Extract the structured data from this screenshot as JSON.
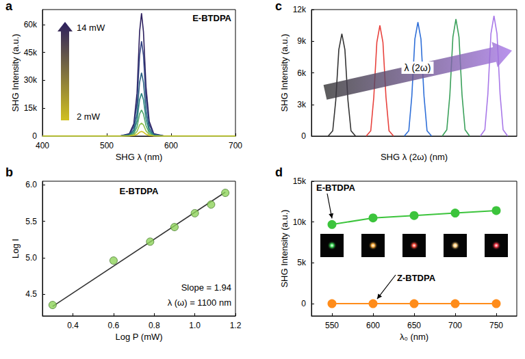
{
  "chart_data": [
    {
      "panel": "a",
      "type": "line",
      "x_label": "SHG λ (nm)",
      "y_label": "SHG Intensity (a.u.)",
      "annotations": [
        "E-BTDPA",
        "14 mW",
        "2 mW"
      ],
      "x": [
        400,
        520,
        535,
        542,
        547,
        551,
        554,
        557,
        561,
        566,
        573,
        590,
        700
      ],
      "series": [
        {
          "color": "#2b1e5e",
          "values": [
            0,
            0,
            1300,
            6600,
            23100,
            56100,
            66000,
            56100,
            26400,
            7900,
            1300,
            0,
            0
          ]
        },
        {
          "color": "#2f3f80",
          "values": [
            0,
            0,
            1000,
            5100,
            17900,
            43400,
            51000,
            43400,
            20400,
            6100,
            1000,
            0,
            0
          ]
        },
        {
          "color": "#2b6383",
          "values": [
            0,
            0,
            700,
            3400,
            11900,
            28900,
            34000,
            28900,
            13600,
            4100,
            700,
            0,
            0
          ]
        },
        {
          "color": "#2a857e",
          "values": [
            0,
            0,
            500,
            2300,
            8100,
            19600,
            23000,
            19600,
            9200,
            2800,
            500,
            0,
            0
          ]
        },
        {
          "color": "#4ea66a",
          "values": [
            0,
            0,
            300,
            1400,
            4900,
            11900,
            14000,
            11900,
            5600,
            1700,
            300,
            0,
            0
          ]
        },
        {
          "color": "#8ec04a",
          "values": [
            0,
            0,
            100,
            700,
            2500,
            6000,
            7000,
            6000,
            2800,
            800,
            100,
            0,
            0
          ]
        },
        {
          "color": "#d0c020",
          "values": [
            0,
            0,
            100,
            300,
            900,
            2100,
            2500,
            2100,
            1000,
            300,
            100,
            0,
            0
          ]
        }
      ],
      "xlim": [
        400,
        700
      ],
      "xticks": [
        400,
        500,
        600,
        700
      ],
      "ylim": [
        0,
        68000
      ],
      "yticks": [
        0,
        {
          "value": 15000,
          "label": "15k"
        },
        {
          "value": 30000,
          "label": "30k"
        },
        {
          "value": 45000,
          "label": "45k"
        },
        {
          "value": 60000,
          "label": "60k"
        }
      ],
      "grid": false
    },
    {
      "panel": "b",
      "type": "scatter",
      "x_label": "Log P (mW)",
      "y_label": "Log I",
      "annotations": [
        "E-BTDPA",
        "Slope = 1.94",
        "λ (ω) = 1100 nm"
      ],
      "series": [
        {
          "type": "line",
          "color": "#333333",
          "x": [
            0.3,
            1.15
          ],
          "values": [
            4.33,
            5.9
          ]
        },
        {
          "type": "scatter",
          "marker": "circle",
          "color": "#8ed35b",
          "x": [
            0.3,
            0.6,
            0.78,
            0.9,
            1.0,
            1.08,
            1.15
          ],
          "values": [
            4.35,
            4.96,
            5.22,
            5.42,
            5.61,
            5.73,
            5.89
          ]
        }
      ],
      "xlim": [
        0.25,
        1.2
      ],
      "xticks": [
        0.4,
        0.6,
        0.8,
        {
          "value": 1,
          "label": "1.0"
        },
        1.2
      ],
      "ylim": [
        4.2,
        6.05
      ],
      "yticks": [
        4.5,
        {
          "value": 5,
          "label": "5.0"
        },
        5.5,
        {
          "value": 6,
          "label": "6.0"
        }
      ],
      "grid": false
    },
    {
      "panel": "c",
      "type": "line",
      "x_label": "SHG λ (2ω) (nm)",
      "y_label": "SHG Intensity (a.u.)",
      "annotations": [
        "λ (2ω)"
      ],
      "series": [
        {
          "color": "#333333",
          "x": [
            532,
            538,
            542,
            546,
            550,
            554,
            558,
            562,
            568
          ],
          "values": [
            0,
            500,
            3400,
            8200,
            9700,
            8200,
            3400,
            500,
            0
          ]
        },
        {
          "color": "#e8413c",
          "x": [
            582,
            588,
            592,
            596,
            600,
            604,
            608,
            612,
            618
          ],
          "values": [
            0,
            500,
            3700,
            8900,
            10500,
            8900,
            3700,
            500,
            0
          ]
        },
        {
          "color": "#2f6fd8",
          "x": [
            632,
            638,
            642,
            646,
            650,
            654,
            658,
            662,
            668
          ],
          "values": [
            0,
            500,
            3800,
            9200,
            10800,
            9200,
            3800,
            500,
            0
          ]
        },
        {
          "color": "#3aa05a",
          "x": [
            682,
            688,
            692,
            696,
            700,
            704,
            708,
            712,
            718
          ],
          "values": [
            0,
            600,
            3900,
            9400,
            11100,
            9400,
            3900,
            600,
            0
          ]
        },
        {
          "color": "#a878e8",
          "x": [
            732,
            738,
            742,
            746,
            750,
            754,
            758,
            762,
            768
          ],
          "values": [
            0,
            600,
            4000,
            9700,
            11400,
            9700,
            4000,
            600,
            0
          ]
        }
      ],
      "xlim": [
        510,
        780
      ],
      "ylim": [
        0,
        12000
      ],
      "yticks": [
        0,
        {
          "value": 3000,
          "label": "3k"
        },
        {
          "value": 6000,
          "label": "6k"
        },
        {
          "value": 9000,
          "label": "9k"
        },
        {
          "value": 12000,
          "label": "12k"
        }
      ],
      "tick_labels": "y",
      "grid": false
    },
    {
      "panel": "d",
      "type": "line",
      "x_label": "λ₀ (nm)",
      "y_label": "SHG Intensity (a.u.)",
      "x": [
        550,
        600,
        650,
        700,
        750
      ],
      "series": [
        {
          "name": "E-BTDPA",
          "color": "#3cc43c",
          "marker": "circle",
          "values": [
            9700,
            10500,
            10800,
            11100,
            11400
          ]
        },
        {
          "name": "Z-BTDPA",
          "color": "#ff8c1a",
          "marker": "circle",
          "values": [
            0,
            0,
            0,
            0,
            0
          ]
        }
      ],
      "xlim": [
        525,
        775
      ],
      "xticks": [
        550,
        600,
        650,
        700,
        750
      ],
      "ylim": [
        -1500,
        15000
      ],
      "yticks": [
        0,
        {
          "value": 5000,
          "label": "5k"
        },
        {
          "value": 10000,
          "label": "10k"
        },
        {
          "value": 15000,
          "label": "15k"
        }
      ],
      "grid": false
    }
  ]
}
